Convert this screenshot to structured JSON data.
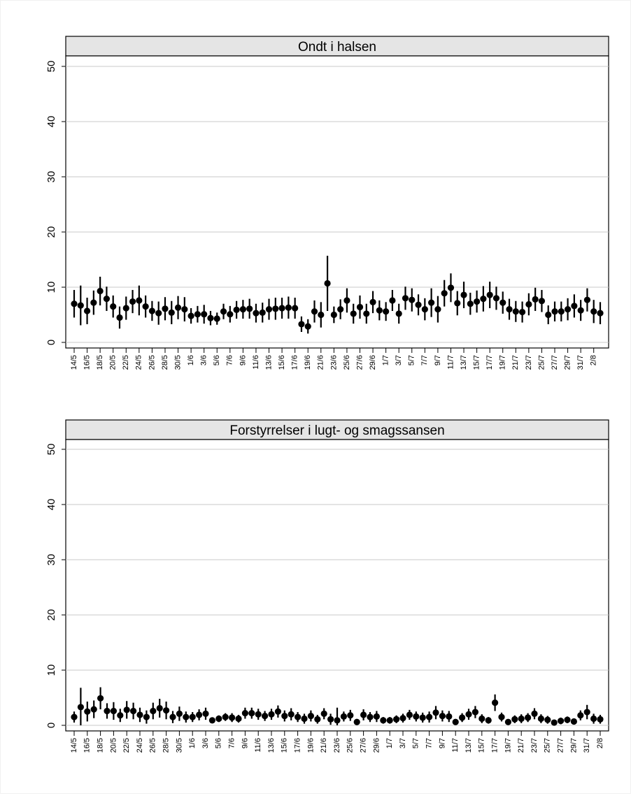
{
  "chart_data": [
    {
      "type": "scatter",
      "title": "Ondt i halsen",
      "ylim": [
        0,
        52
      ],
      "yticks": [
        0,
        10,
        20,
        30,
        40,
        50
      ],
      "grid": true,
      "xticklabels": [
        "14/5",
        "16/5",
        "18/5",
        "20/5",
        "22/5",
        "24/5",
        "26/5",
        "28/5",
        "30/5",
        "1/6",
        "3/6",
        "5/6",
        "7/6",
        "9/6",
        "11/6",
        "13/6",
        "15/6",
        "17/6",
        "19/6",
        "21/6",
        "23/6",
        "25/6",
        "27/6",
        "29/6",
        "1/7",
        "3/7",
        "5/7",
        "7/7",
        "9/7",
        "11/7",
        "13/7",
        "15/7",
        "17/7",
        "19/7",
        "21/7",
        "23/7",
        "25/7",
        "27/7",
        "29/7",
        "31/7",
        "2/8"
      ],
      "values": [
        7,
        6.7,
        5.7,
        7.2,
        9.3,
        7.9,
        6.5,
        4.5,
        6.2,
        7.4,
        7.6,
        6.5,
        5.7,
        5.3,
        6.1,
        5.4,
        6.3,
        6,
        4.8,
        5.1,
        5.1,
        4.4,
        4.3,
        5.6,
        5.1,
        5.9,
        6,
        6.1,
        5.3,
        5.4,
        6,
        6.1,
        6.2,
        6.3,
        6.2,
        3.3,
        2.9,
        5.6,
        5,
        10.7,
        5,
        6,
        7.6,
        5.2,
        6.4,
        5.2,
        7.3,
        5.8,
        5.6,
        7.6,
        5.2,
        8,
        7.7,
        6.8,
        6,
        7.2,
        6,
        8.9,
        9.9,
        7.1,
        8.6,
        7,
        7.4,
        7.9,
        8.6,
        8,
        7.2,
        6,
        5.6,
        5.5,
        6.9,
        7.8,
        7.5,
        5,
        5.6,
        5.6,
        6,
        6.6,
        5.8,
        7.7,
        5.6,
        5.3
      ],
      "err": [
        2.5,
        3.6,
        2.4,
        2.2,
        2.6,
        2.2,
        2,
        2,
        2.1,
        2.1,
        2.7,
        2,
        1.8,
        2.1,
        2.1,
        2.1,
        2.1,
        2.2,
        1.4,
        1.5,
        1.7,
        1.3,
        1.1,
        1.4,
        1.5,
        1.6,
        1.7,
        1.8,
        1.7,
        1.8,
        1.9,
        2,
        1.9,
        2,
        1.9,
        1.4,
        1.3,
        2,
        2.3,
        5,
        1.5,
        1.8,
        2.2,
        1.8,
        2.1,
        1.8,
        2,
        1.8,
        1.7,
        1.9,
        1.8,
        2.1,
        2.1,
        1.9,
        2,
        2.6,
        2.4,
        2.4,
        2.6,
        2.2,
        2.4,
        2,
        2,
        2.3,
        2.4,
        2.1,
        2,
        1.9,
        1.9,
        1.9,
        2,
        2.1,
        2,
        1.7,
        1.8,
        1.8,
        2,
        2.1,
        1.9,
        2.1,
        2.1,
        2
      ]
    },
    {
      "type": "scatter",
      "title": "Forstyrrelser i lugt- og smagssansen",
      "ylim": [
        0,
        52
      ],
      "yticks": [
        0,
        10,
        20,
        30,
        40,
        50
      ],
      "grid": true,
      "xticklabels": [
        "14/5",
        "16/5",
        "18/5",
        "20/5",
        "22/5",
        "24/5",
        "26/5",
        "28/5",
        "30/5",
        "1/6",
        "3/6",
        "5/6",
        "7/6",
        "9/6",
        "11/6",
        "13/6",
        "15/6",
        "17/6",
        "19/6",
        "21/6",
        "23/6",
        "25/6",
        "27/6",
        "29/6",
        "1/7",
        "3/7",
        "5/7",
        "7/7",
        "9/7",
        "11/7",
        "13/7",
        "15/7",
        "17/7",
        "19/7",
        "21/7",
        "23/7",
        "25/7",
        "27/7",
        "29/7",
        "31/7",
        "2/8"
      ],
      "values": [
        1.5,
        3.3,
        2.5,
        2.9,
        4.9,
        2.6,
        2.6,
        1.8,
        2.8,
        2.6,
        1.9,
        1.5,
        2.6,
        3.1,
        2.7,
        1.5,
        2.1,
        1.5,
        1.5,
        1.9,
        2.1,
        0.9,
        1.2,
        1.5,
        1.4,
        1.2,
        2.2,
        2.2,
        2,
        1.7,
        2,
        2.5,
        1.7,
        2,
        1.5,
        1.2,
        1.7,
        1.1,
        2.1,
        1.1,
        0.9,
        1.6,
        1.8,
        0.6,
        1.9,
        1.5,
        1.6,
        0.9,
        0.9,
        1.1,
        1.3,
        1.9,
        1.6,
        1.4,
        1.5,
        2.3,
        1.7,
        1.6,
        0.6,
        1.4,
        2,
        2.4,
        1.2,
        0.9,
        4.1,
        1.5,
        0.6,
        1.1,
        1.2,
        1.4,
        2.1,
        1.2,
        1,
        0.5,
        0.8,
        1,
        0.7,
        1.8,
        2.4,
        1.2,
        1.1
      ],
      "err": [
        1,
        3.5,
        1.8,
        1.6,
        2,
        1.4,
        1.6,
        1.2,
        1.6,
        1.5,
        1.3,
        1.2,
        1.5,
        1.7,
        1.6,
        1.1,
        1.3,
        1,
        0.9,
        1,
        1.1,
        0.5,
        0.6,
        0.7,
        0.8,
        0.7,
        1,
        1,
        1,
        0.9,
        1,
        1.1,
        1,
        1.1,
        0.9,
        0.9,
        1,
        0.8,
        1,
        1,
        2.3,
        0.9,
        1,
        0.5,
        1,
        0.9,
        1,
        0.6,
        0.6,
        0.7,
        0.8,
        0.9,
        0.9,
        0.9,
        1,
        1.2,
        1,
        1,
        0.5,
        0.8,
        1,
        1.1,
        0.8,
        0.6,
        1.5,
        0.8,
        0.5,
        0.7,
        0.8,
        0.8,
        1,
        0.8,
        0.7,
        0.4,
        0.6,
        0.6,
        0.5,
        0.9,
        1.3,
        0.9,
        0.8
      ]
    }
  ]
}
